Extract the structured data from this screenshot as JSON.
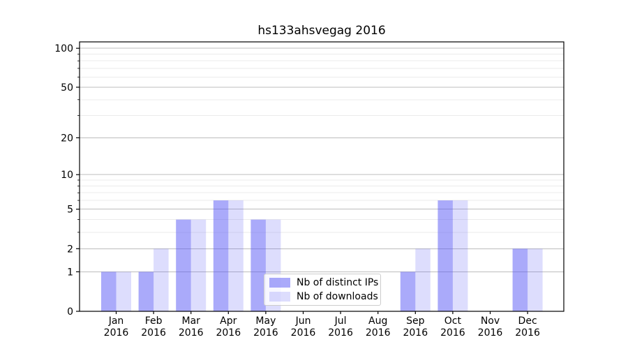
{
  "title": "hs133ahsvegag 2016",
  "chart_data": {
    "type": "bar",
    "title": "hs133ahsvegag 2016",
    "categories": [
      "Jan 2016",
      "Feb 2016",
      "Mar 2016",
      "Apr 2016",
      "May 2016",
      "Jun 2016",
      "Jul 2016",
      "Aug 2016",
      "Sep 2016",
      "Oct 2016",
      "Nov 2016",
      "Dec 2016"
    ],
    "series": [
      {
        "name": "Nb of distinct IPs",
        "color": "#5555f5",
        "fill_opacity": 0.5,
        "values": [
          1,
          1,
          4,
          6,
          4,
          0,
          0,
          0,
          1,
          6,
          0,
          2
        ]
      },
      {
        "name": "Nb of downloads",
        "color": "#5555f5",
        "fill_opacity": 0.2,
        "values": [
          1,
          2,
          4,
          6,
          4,
          0,
          0,
          0,
          2,
          6,
          0,
          2
        ]
      }
    ],
    "xlabel": "",
    "ylabel": "",
    "yscale": "log1p",
    "ylim": [
      0,
      112
    ],
    "yticks": [
      0,
      1,
      2,
      5,
      10,
      20,
      50,
      100
    ],
    "minor_yticks": [
      3,
      4,
      6,
      7,
      8,
      9,
      30,
      40,
      60,
      70,
      80,
      90
    ],
    "grid": true,
    "legend_position": "lower center",
    "colors": {
      "grid_major": "#bdbdbd",
      "grid_minor": "#ebebeb",
      "axis": "#000000",
      "text": "#000000",
      "background": "#ffffff"
    }
  }
}
